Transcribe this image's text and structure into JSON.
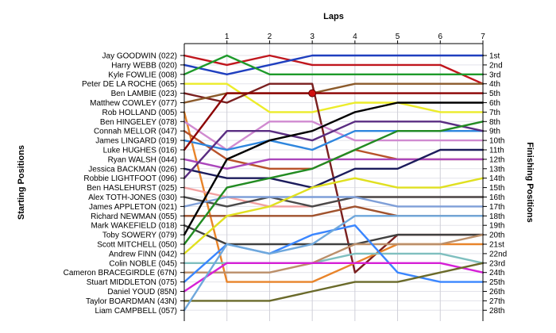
{
  "chart_data": {
    "type": "line",
    "title": "",
    "xlabel": "Laps",
    "ylabel_left": "Starting Positions",
    "ylabel_right": "Finishing Positions",
    "x": [
      0,
      1,
      2,
      3,
      4,
      5,
      6,
      7
    ],
    "x_tick_labels": [
      "1",
      "2",
      "3",
      "4",
      "5",
      "6",
      "7"
    ],
    "y_inverted": true,
    "ylim": [
      1,
      28
    ],
    "grid": true,
    "drivers": [
      "Jay GOODWIN (022)",
      "Harry WEBB (020)",
      "Kyle FOWLIE (008)",
      "Peter DE LA ROCHE (065)",
      "Ben LAMBIE (023)",
      "Matthew COWLEY (077)",
      "Rob HOLLAND (005)",
      "Ben HINGELEY (078)",
      "Connah MELLOR (047)",
      "James LINGARD (019)",
      "Luke HUGHES (016)",
      "Ryan WALSH (044)",
      "Jessica BACKMAN (026)",
      "Robbie LIGHTFOOT (096)",
      "Ben HASLEHURST (025)",
      "Alex TOTH-JONES (030)",
      "James APPLETON (021)",
      "Richard NEWMAN (055)",
      "Mark WAKEFIELD (018)",
      "Toby SOWERY (079)",
      "Scott MITCHELL (050)",
      "Andrew FINN (042)",
      "Colin NOBLE (045)",
      "Cameron BRACEGIRDLE (67N)",
      "Stuart MIDDLETON (075)",
      "Daniel YOUD (85N)",
      "Taylor BOARDMAN (43N)",
      "Liam CAMPBELL (057)"
    ],
    "finishing_labels": [
      "1st",
      "2nd",
      "3rd",
      "4th",
      "5th",
      "6th",
      "7th",
      "8th",
      "9th",
      "10th",
      "11th",
      "12th",
      "13th",
      "14th",
      "15th",
      "16th",
      "17th",
      "18th",
      "19th",
      "20th",
      "21st",
      "22nd",
      "23rd",
      "24th",
      "25th",
      "26th",
      "27th",
      "28th"
    ],
    "incident": {
      "lap": 3,
      "position": 5
    },
    "series": [
      {
        "color": "#c0161d",
        "positions": [
          1,
          2,
          1,
          2,
          2,
          2,
          2,
          4
        ]
      },
      {
        "color": "#1f3fbf",
        "positions": [
          2,
          3,
          2,
          1,
          1,
          1,
          1,
          1
        ]
      },
      {
        "color": "#1e9a2a",
        "positions": [
          3,
          1,
          3,
          3,
          3,
          3,
          3,
          3
        ]
      },
      {
        "color": "#ecec2a",
        "positions": [
          4,
          4,
          7,
          7,
          6,
          6,
          7,
          7
        ]
      },
      {
        "color": "#7a1f1f",
        "positions": [
          5,
          6,
          4,
          4,
          24,
          20,
          20,
          20
        ]
      },
      {
        "color": "#8b5a2b",
        "positions": [
          6,
          5,
          5,
          5,
          4,
          4,
          4,
          4
        ]
      },
      {
        "color": "#e8842a",
        "positions": [
          7,
          25,
          25,
          25,
          23,
          21,
          21,
          21
        ]
      },
      {
        "color": "#d08ad0",
        "positions": [
          8,
          11,
          8,
          8,
          10,
          10,
          10,
          10
        ]
      },
      {
        "color": "#b8522a",
        "positions": [
          9,
          12,
          13,
          13,
          11,
          12,
          12,
          12
        ]
      },
      {
        "color": "#2e86de",
        "positions": [
          10,
          11,
          10,
          11,
          9,
          9,
          9,
          9
        ]
      },
      {
        "color": "#8b0000",
        "positions": [
          11,
          5,
          5,
          5,
          5,
          5,
          5,
          5
        ]
      },
      {
        "color": "#ab47bc",
        "positions": [
          12,
          13,
          12,
          12,
          12,
          12,
          12,
          12
        ]
      },
      {
        "color": "#1c1c5c",
        "positions": [
          13,
          14,
          14,
          15,
          13,
          13,
          11,
          11
        ]
      },
      {
        "color": "#5a2d82",
        "positions": [
          14,
          9,
          9,
          10,
          8,
          8,
          8,
          9
        ]
      },
      {
        "color": "#f2a1a1",
        "positions": [
          15,
          16,
          17,
          17,
          16,
          16,
          16,
          16
        ]
      },
      {
        "color": "#4a4a4a",
        "positions": [
          16,
          17,
          16,
          17,
          16,
          16,
          16,
          16
        ]
      },
      {
        "color": "#7f9fd8",
        "positions": [
          17,
          16,
          16,
          16,
          16,
          17,
          17,
          17
        ]
      },
      {
        "color": "#a0522d",
        "positions": [
          18,
          18,
          18,
          18,
          17,
          18,
          18,
          18
        ]
      },
      {
        "color": "#404040",
        "positions": [
          19,
          21,
          21,
          21,
          21,
          20,
          20,
          20
        ]
      },
      {
        "color": "#000000",
        "positions": [
          20,
          12,
          10,
          9,
          7,
          6,
          6,
          6
        ]
      },
      {
        "color": "#228b22",
        "positions": [
          21,
          15,
          14,
          13,
          11,
          9,
          9,
          8
        ]
      },
      {
        "color": "#e0e020",
        "positions": [
          22,
          18,
          17,
          15,
          14,
          15,
          15,
          14
        ]
      },
      {
        "color": "#7fbfbf",
        "positions": [
          23,
          23,
          23,
          23,
          22,
          22,
          22,
          23
        ]
      },
      {
        "color": "#bb8f6a",
        "positions": [
          24,
          24,
          24,
          23,
          21,
          21,
          21,
          20
        ]
      },
      {
        "color": "#3a86ff",
        "positions": [
          25,
          21,
          22,
          20,
          19,
          24,
          25,
          25
        ]
      },
      {
        "color": "#d620d6",
        "positions": [
          26,
          23,
          23,
          23,
          23,
          23,
          23,
          24
        ]
      },
      {
        "color": "#6a6a2a",
        "positions": [
          27,
          27,
          27,
          26,
          25,
          25,
          24,
          23
        ]
      },
      {
        "color": "#6fa8dc",
        "positions": [
          28,
          21,
          22,
          21,
          18,
          18,
          18,
          18
        ]
      }
    ]
  }
}
